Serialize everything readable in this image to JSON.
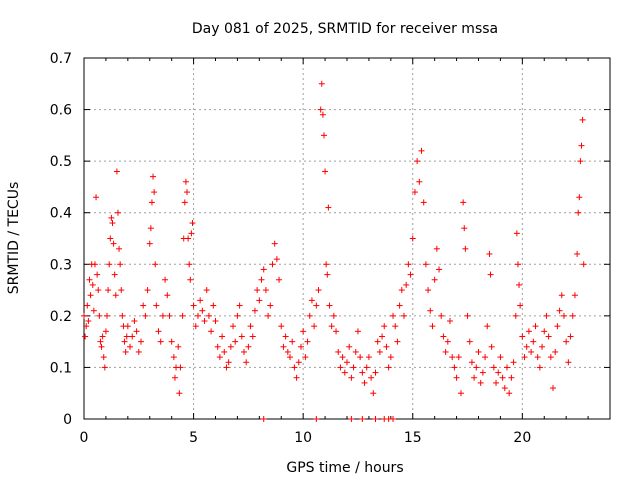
{
  "chart_data": {
    "type": "scatter",
    "title": "Day 081 of 2025, SRMTID for receiver mssa",
    "xlabel": "GPS time / hours",
    "ylabel": "SRMTID / TECUs",
    "xlim": [
      0,
      24
    ],
    "ylim": [
      0,
      0.7
    ],
    "xticks": [
      0,
      5,
      10,
      15,
      20
    ],
    "yticks": [
      0,
      0.1,
      0.2,
      0.3,
      0.4,
      0.5,
      0.6,
      0.7
    ],
    "tick_labels_x": [
      "0",
      "5",
      "10",
      "15",
      "20"
    ],
    "tick_labels_y": [
      "0",
      "0.1",
      "0.2",
      "0.3",
      "0.4",
      "0.5",
      "0.6",
      "0.7"
    ],
    "grid": true,
    "marker": "+",
    "color": "#ff0000",
    "series": [
      {
        "name": "SRMTID",
        "points": [
          [
            0.0,
            0.2
          ],
          [
            0.05,
            0.16
          ],
          [
            0.1,
            0.18
          ],
          [
            0.15,
            0.22
          ],
          [
            0.2,
            0.19
          ],
          [
            0.25,
            0.27
          ],
          [
            0.3,
            0.24
          ],
          [
            0.35,
            0.3
          ],
          [
            0.4,
            0.26
          ],
          [
            0.45,
            0.21
          ],
          [
            0.5,
            0.3
          ],
          [
            0.55,
            0.43
          ],
          [
            0.6,
            0.28
          ],
          [
            0.65,
            0.25
          ],
          [
            0.7,
            0.2
          ],
          [
            0.75,
            0.15
          ],
          [
            0.8,
            0.14
          ],
          [
            0.85,
            0.16
          ],
          [
            0.9,
            0.12
          ],
          [
            0.95,
            0.1
          ],
          [
            1.0,
            0.17
          ],
          [
            1.05,
            0.2
          ],
          [
            1.1,
            0.25
          ],
          [
            1.15,
            0.3
          ],
          [
            1.2,
            0.35
          ],
          [
            1.25,
            0.39
          ],
          [
            1.3,
            0.38
          ],
          [
            1.35,
            0.34
          ],
          [
            1.4,
            0.28
          ],
          [
            1.45,
            0.24
          ],
          [
            1.5,
            0.48
          ],
          [
            1.55,
            0.4
          ],
          [
            1.6,
            0.33
          ],
          [
            1.65,
            0.3
          ],
          [
            1.7,
            0.25
          ],
          [
            1.75,
            0.2
          ],
          [
            1.8,
            0.18
          ],
          [
            1.85,
            0.15
          ],
          [
            1.9,
            0.13
          ],
          [
            1.95,
            0.16
          ],
          [
            2.0,
            0.18
          ],
          [
            2.1,
            0.14
          ],
          [
            2.2,
            0.16
          ],
          [
            2.3,
            0.19
          ],
          [
            2.4,
            0.17
          ],
          [
            2.5,
            0.13
          ],
          [
            2.6,
            0.15
          ],
          [
            2.7,
            0.22
          ],
          [
            2.8,
            0.2
          ],
          [
            2.9,
            0.25
          ],
          [
            3.0,
            0.34
          ],
          [
            3.05,
            0.37
          ],
          [
            3.1,
            0.42
          ],
          [
            3.15,
            0.47
          ],
          [
            3.2,
            0.44
          ],
          [
            3.25,
            0.3
          ],
          [
            3.3,
            0.22
          ],
          [
            3.4,
            0.17
          ],
          [
            3.5,
            0.15
          ],
          [
            3.6,
            0.2
          ],
          [
            3.7,
            0.27
          ],
          [
            3.8,
            0.24
          ],
          [
            3.9,
            0.2
          ],
          [
            4.0,
            0.15
          ],
          [
            4.1,
            0.12
          ],
          [
            4.15,
            0.08
          ],
          [
            4.2,
            0.1
          ],
          [
            4.3,
            0.14
          ],
          [
            4.35,
            0.05
          ],
          [
            4.4,
            0.1
          ],
          [
            4.5,
            0.2
          ],
          [
            4.55,
            0.35
          ],
          [
            4.6,
            0.42
          ],
          [
            4.65,
            0.46
          ],
          [
            4.7,
            0.44
          ],
          [
            4.75,
            0.35
          ],
          [
            4.8,
            0.3
          ],
          [
            4.85,
            0.27
          ],
          [
            4.9,
            0.36
          ],
          [
            4.95,
            0.38
          ],
          [
            5.0,
            0.22
          ],
          [
            5.1,
            0.18
          ],
          [
            5.2,
            0.2
          ],
          [
            5.3,
            0.23
          ],
          [
            5.4,
            0.21
          ],
          [
            5.5,
            0.19
          ],
          [
            5.6,
            0.25
          ],
          [
            5.7,
            0.2
          ],
          [
            5.8,
            0.17
          ],
          [
            5.9,
            0.22
          ],
          [
            6.0,
            0.19
          ],
          [
            6.1,
            0.14
          ],
          [
            6.2,
            0.12
          ],
          [
            6.3,
            0.16
          ],
          [
            6.4,
            0.13
          ],
          [
            6.5,
            0.1
          ],
          [
            6.6,
            0.11
          ],
          [
            6.7,
            0.14
          ],
          [
            6.8,
            0.18
          ],
          [
            6.9,
            0.15
          ],
          [
            7.0,
            0.2
          ],
          [
            7.1,
            0.22
          ],
          [
            7.2,
            0.16
          ],
          [
            7.3,
            0.13
          ],
          [
            7.4,
            0.11
          ],
          [
            7.5,
            0.14
          ],
          [
            7.6,
            0.18
          ],
          [
            7.7,
            0.16
          ],
          [
            7.8,
            0.21
          ],
          [
            7.9,
            0.25
          ],
          [
            8.0,
            0.23
          ],
          [
            8.1,
            0.27
          ],
          [
            8.2,
            0.29
          ],
          [
            8.3,
            0.25
          ],
          [
            8.4,
            0.2
          ],
          [
            8.5,
            0.22
          ],
          [
            8.6,
            0.3
          ],
          [
            8.7,
            0.34
          ],
          [
            8.8,
            0.31
          ],
          [
            8.9,
            0.27
          ],
          [
            9.0,
            0.18
          ],
          [
            9.1,
            0.14
          ],
          [
            9.2,
            0.16
          ],
          [
            9.3,
            0.13
          ],
          [
            9.4,
            0.12
          ],
          [
            9.5,
            0.15
          ],
          [
            9.6,
            0.1
          ],
          [
            9.7,
            0.08
          ],
          [
            9.8,
            0.11
          ],
          [
            9.9,
            0.14
          ],
          [
            10.0,
            0.17
          ],
          [
            10.1,
            0.12
          ],
          [
            10.2,
            0.15
          ],
          [
            10.3,
            0.2
          ],
          [
            10.4,
            0.23
          ],
          [
            10.5,
            0.18
          ],
          [
            10.6,
            0.22
          ],
          [
            10.7,
            0.25
          ],
          [
            10.8,
            0.6
          ],
          [
            10.85,
            0.65
          ],
          [
            10.9,
            0.59
          ],
          [
            10.95,
            0.55
          ],
          [
            11.0,
            0.48
          ],
          [
            11.05,
            0.3
          ],
          [
            11.1,
            0.28
          ],
          [
            11.15,
            0.41
          ],
          [
            11.2,
            0.22
          ],
          [
            11.3,
            0.18
          ],
          [
            11.4,
            0.2
          ],
          [
            11.5,
            0.17
          ],
          [
            11.6,
            0.13
          ],
          [
            11.7,
            0.1
          ],
          [
            11.8,
            0.12
          ],
          [
            11.9,
            0.09
          ],
          [
            12.0,
            0.11
          ],
          [
            12.1,
            0.14
          ],
          [
            12.2,
            0.08
          ],
          [
            12.3,
            0.1
          ],
          [
            12.4,
            0.13
          ],
          [
            12.5,
            0.17
          ],
          [
            12.6,
            0.12
          ],
          [
            12.7,
            0.09
          ],
          [
            12.8,
            0.07
          ],
          [
            12.9,
            0.1
          ],
          [
            13.0,
            0.12
          ],
          [
            13.1,
            0.08
          ],
          [
            13.2,
            0.05
          ],
          [
            13.3,
            0.09
          ],
          [
            13.4,
            0.15
          ],
          [
            13.5,
            0.13
          ],
          [
            13.6,
            0.16
          ],
          [
            13.7,
            0.18
          ],
          [
            13.8,
            0.14
          ],
          [
            13.9,
            0.1
          ],
          [
            14.0,
            0.12
          ],
          [
            14.1,
            0.2
          ],
          [
            14.2,
            0.18
          ],
          [
            14.3,
            0.15
          ],
          [
            14.4,
            0.22
          ],
          [
            14.5,
            0.25
          ],
          [
            14.6,
            0.2
          ],
          [
            14.7,
            0.26
          ],
          [
            14.8,
            0.3
          ],
          [
            14.9,
            0.28
          ],
          [
            15.0,
            0.35
          ],
          [
            15.1,
            0.44
          ],
          [
            15.2,
            0.5
          ],
          [
            15.3,
            0.46
          ],
          [
            15.4,
            0.52
          ],
          [
            15.5,
            0.42
          ],
          [
            15.6,
            0.3
          ],
          [
            15.7,
            0.25
          ],
          [
            15.8,
            0.21
          ],
          [
            15.9,
            0.18
          ],
          [
            16.0,
            0.27
          ],
          [
            16.1,
            0.33
          ],
          [
            16.2,
            0.29
          ],
          [
            16.3,
            0.2
          ],
          [
            16.4,
            0.16
          ],
          [
            16.5,
            0.13
          ],
          [
            16.6,
            0.15
          ],
          [
            16.7,
            0.19
          ],
          [
            16.8,
            0.12
          ],
          [
            16.9,
            0.1
          ],
          [
            17.0,
            0.08
          ],
          [
            17.1,
            0.12
          ],
          [
            17.2,
            0.05
          ],
          [
            17.3,
            0.42
          ],
          [
            17.35,
            0.37
          ],
          [
            17.4,
            0.33
          ],
          [
            17.5,
            0.2
          ],
          [
            17.6,
            0.15
          ],
          [
            17.7,
            0.11
          ],
          [
            17.8,
            0.08
          ],
          [
            17.9,
            0.1
          ],
          [
            18.0,
            0.13
          ],
          [
            18.1,
            0.07
          ],
          [
            18.2,
            0.09
          ],
          [
            18.3,
            0.12
          ],
          [
            18.4,
            0.18
          ],
          [
            18.5,
            0.32
          ],
          [
            18.55,
            0.28
          ],
          [
            18.6,
            0.14
          ],
          [
            18.7,
            0.1
          ],
          [
            18.8,
            0.07
          ],
          [
            18.9,
            0.09
          ],
          [
            19.0,
            0.12
          ],
          [
            19.1,
            0.08
          ],
          [
            19.2,
            0.06
          ],
          [
            19.3,
            0.1
          ],
          [
            19.4,
            0.05
          ],
          [
            19.5,
            0.08
          ],
          [
            19.6,
            0.11
          ],
          [
            19.7,
            0.2
          ],
          [
            19.75,
            0.36
          ],
          [
            19.8,
            0.3
          ],
          [
            19.85,
            0.26
          ],
          [
            19.9,
            0.22
          ],
          [
            20.0,
            0.16
          ],
          [
            20.1,
            0.12
          ],
          [
            20.2,
            0.14
          ],
          [
            20.3,
            0.17
          ],
          [
            20.4,
            0.13
          ],
          [
            20.5,
            0.15
          ],
          [
            20.6,
            0.18
          ],
          [
            20.7,
            0.12
          ],
          [
            20.8,
            0.1
          ],
          [
            20.9,
            0.14
          ],
          [
            21.0,
            0.17
          ],
          [
            21.1,
            0.2
          ],
          [
            21.2,
            0.16
          ],
          [
            21.3,
            0.12
          ],
          [
            21.4,
            0.06
          ],
          [
            21.5,
            0.13
          ],
          [
            21.6,
            0.18
          ],
          [
            21.7,
            0.21
          ],
          [
            21.8,
            0.24
          ],
          [
            21.9,
            0.2
          ],
          [
            22.0,
            0.15
          ],
          [
            22.1,
            0.11
          ],
          [
            22.2,
            0.16
          ],
          [
            22.3,
            0.2
          ],
          [
            22.4,
            0.24
          ],
          [
            22.5,
            0.32
          ],
          [
            22.55,
            0.4
          ],
          [
            22.6,
            0.43
          ],
          [
            22.65,
            0.5
          ],
          [
            22.7,
            0.53
          ],
          [
            22.75,
            0.58
          ],
          [
            22.8,
            0.3
          ],
          [
            8.2,
            0.0
          ],
          [
            10.6,
            0.0
          ],
          [
            12.2,
            0.0
          ],
          [
            12.7,
            0.0
          ],
          [
            13.3,
            0.0
          ],
          [
            13.7,
            0.0
          ],
          [
            13.9,
            0.0
          ],
          [
            14.1,
            0.0
          ]
        ]
      }
    ]
  }
}
